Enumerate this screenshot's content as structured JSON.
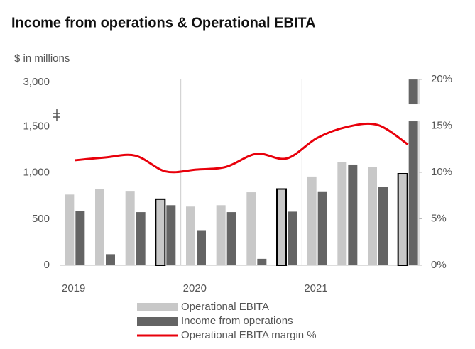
{
  "chart_data": {
    "type": "bar-line",
    "title": "Income from operations & Operational EBITA",
    "ylabel": "$ in millions",
    "categories": [
      "2019",
      null,
      null,
      null,
      "2020",
      null,
      null,
      null,
      "2021",
      null,
      null,
      null
    ],
    "series": [
      {
        "name": "Operational EBITA",
        "type": "bar",
        "color": "#c8c8c8",
        "outline_indices": [
          3,
          7,
          11
        ],
        "values": [
          765,
          825,
          805,
          715,
          635,
          650,
          790,
          825,
          960,
          1115,
          1065,
          990
        ]
      },
      {
        "name": "Income from operations",
        "type": "bar",
        "color": "#646464",
        "values": [
          590,
          120,
          575,
          650,
          380,
          575,
          70,
          580,
          800,
          1090,
          850,
          3030
        ]
      },
      {
        "name": "Operational EBITA margin %",
        "type": "line",
        "color": "#e8000b",
        "axis": "y2",
        "values": [
          11.3,
          11.6,
          11.8,
          10.1,
          10.3,
          10.6,
          12.0,
          11.5,
          13.7,
          14.9,
          15.1,
          13.0
        ]
      }
    ],
    "ylim": [
      0,
      3000
    ],
    "ybreak": [
      1550,
      2570
    ],
    "yticks": [
      0,
      500,
      {
        "value": 1000,
        "label": "1,000"
      },
      {
        "value": 1500,
        "label": "1,500"
      },
      {
        "value": 3000,
        "label": "3,000"
      }
    ],
    "y2lim": [
      0,
      20
    ],
    "y2ticks": [
      {
        "value": 0,
        "label": "0%"
      },
      {
        "value": 5,
        "label": "5%"
      },
      {
        "value": 10,
        "label": "10%"
      },
      {
        "value": 15,
        "label": "15%"
      },
      {
        "value": 20,
        "label": "20%"
      }
    ],
    "group_size": 4
  }
}
